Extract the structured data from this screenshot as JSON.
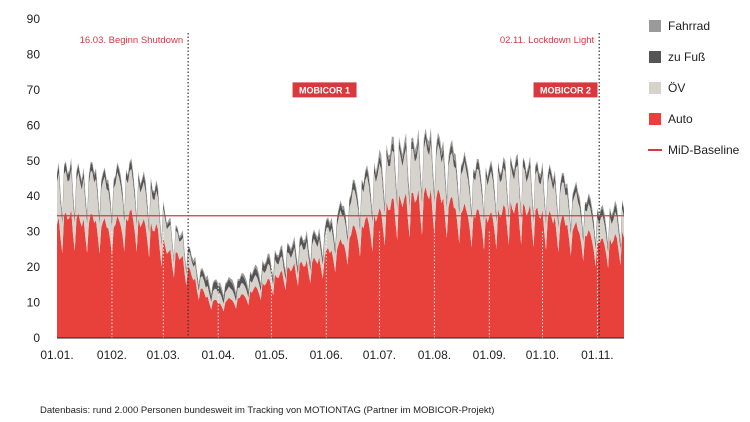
{
  "chart_data": {
    "type": "area",
    "stacked": true,
    "title": "",
    "xlabel": "",
    "ylabel": "",
    "ylim": [
      0,
      90
    ],
    "yticks": [
      0,
      10,
      20,
      30,
      40,
      50,
      60,
      70,
      80,
      90
    ],
    "x_tick_labels": [
      "01.01.",
      "0102.",
      "01.03.",
      "01.04.",
      "01.05.",
      "01.06.",
      "01.07.",
      "01.08.",
      "01.09.",
      "01.10.",
      "01.11."
    ],
    "x_tick_days": [
      0,
      31,
      60,
      91,
      121,
      152,
      182,
      213,
      244,
      274,
      305
    ],
    "x_range_days": [
      0,
      320
    ],
    "grid": false,
    "legend_position": "right",
    "series_order": [
      "Auto",
      "ÖV",
      "zu Fuß",
      "Fahrrad"
    ],
    "series": [
      {
        "name": "Auto",
        "color": "#e8413c",
        "points": [
          [
            0,
            32
          ],
          [
            7,
            35
          ],
          [
            14,
            33
          ],
          [
            21,
            34
          ],
          [
            28,
            32
          ],
          [
            35,
            33
          ],
          [
            42,
            35
          ],
          [
            49,
            32
          ],
          [
            56,
            31
          ],
          [
            63,
            24
          ],
          [
            70,
            23
          ],
          [
            77,
            17
          ],
          [
            84,
            12
          ],
          [
            91,
            10
          ],
          [
            98,
            11
          ],
          [
            105,
            12
          ],
          [
            112,
            14
          ],
          [
            119,
            16
          ],
          [
            126,
            18
          ],
          [
            133,
            20
          ],
          [
            140,
            21
          ],
          [
            147,
            22
          ],
          [
            154,
            25
          ],
          [
            161,
            27
          ],
          [
            168,
            31
          ],
          [
            175,
            33
          ],
          [
            182,
            35
          ],
          [
            189,
            38
          ],
          [
            196,
            39
          ],
          [
            203,
            40
          ],
          [
            210,
            41
          ],
          [
            217,
            40
          ],
          [
            224,
            38
          ],
          [
            231,
            36
          ],
          [
            238,
            35
          ],
          [
            245,
            34
          ],
          [
            252,
            36
          ],
          [
            259,
            37
          ],
          [
            266,
            36
          ],
          [
            273,
            35
          ],
          [
            280,
            34
          ],
          [
            287,
            33
          ],
          [
            294,
            31
          ],
          [
            301,
            29
          ],
          [
            308,
            27
          ],
          [
            315,
            28
          ],
          [
            320,
            29
          ]
        ]
      },
      {
        "name": "ÖV",
        "color": "#d6d2cc",
        "points": [
          [
            0,
            12
          ],
          [
            7,
            11
          ],
          [
            14,
            11
          ],
          [
            21,
            12
          ],
          [
            28,
            11
          ],
          [
            35,
            12
          ],
          [
            42,
            11
          ],
          [
            49,
            10
          ],
          [
            56,
            9
          ],
          [
            63,
            7
          ],
          [
            70,
            5
          ],
          [
            77,
            4
          ],
          [
            84,
            3
          ],
          [
            91,
            3
          ],
          [
            98,
            3
          ],
          [
            105,
            3
          ],
          [
            112,
            3
          ],
          [
            119,
            4
          ],
          [
            126,
            4
          ],
          [
            133,
            4
          ],
          [
            140,
            5
          ],
          [
            147,
            5
          ],
          [
            154,
            6
          ],
          [
            161,
            8
          ],
          [
            168,
            10
          ],
          [
            175,
            11
          ],
          [
            182,
            12
          ],
          [
            189,
            13
          ],
          [
            196,
            12
          ],
          [
            203,
            12
          ],
          [
            210,
            13
          ],
          [
            217,
            12
          ],
          [
            224,
            12
          ],
          [
            231,
            11
          ],
          [
            238,
            11
          ],
          [
            245,
            11
          ],
          [
            252,
            10
          ],
          [
            259,
            10
          ],
          [
            266,
            10
          ],
          [
            273,
            10
          ],
          [
            280,
            10
          ],
          [
            287,
            9
          ],
          [
            294,
            8
          ],
          [
            301,
            7
          ],
          [
            308,
            6
          ],
          [
            315,
            6
          ],
          [
            320,
            6
          ]
        ]
      },
      {
        "name": "zu Fuß",
        "color": "#555555",
        "points": [
          [
            0,
            2
          ],
          [
            7,
            2
          ],
          [
            14,
            2
          ],
          [
            21,
            2
          ],
          [
            28,
            2
          ],
          [
            35,
            2
          ],
          [
            42,
            2
          ],
          [
            49,
            2
          ],
          [
            56,
            2
          ],
          [
            63,
            1
          ],
          [
            70,
            1
          ],
          [
            77,
            1
          ],
          [
            84,
            2
          ],
          [
            91,
            2
          ],
          [
            98,
            2
          ],
          [
            105,
            2
          ],
          [
            112,
            2
          ],
          [
            119,
            2
          ],
          [
            126,
            2
          ],
          [
            133,
            2
          ],
          [
            140,
            2
          ],
          [
            147,
            2
          ],
          [
            154,
            2
          ],
          [
            161,
            2
          ],
          [
            168,
            2
          ],
          [
            175,
            2
          ],
          [
            182,
            2
          ],
          [
            189,
            2
          ],
          [
            196,
            2
          ],
          [
            203,
            2
          ],
          [
            210,
            2
          ],
          [
            217,
            2
          ],
          [
            224,
            2
          ],
          [
            231,
            2
          ],
          [
            238,
            2
          ],
          [
            245,
            2
          ],
          [
            252,
            2
          ],
          [
            259,
            2
          ],
          [
            266,
            2
          ],
          [
            273,
            2
          ],
          [
            280,
            2
          ],
          [
            287,
            2
          ],
          [
            294,
            2
          ],
          [
            301,
            2
          ],
          [
            308,
            2
          ],
          [
            315,
            2
          ],
          [
            320,
            2
          ]
        ]
      },
      {
        "name": "Fahrrad",
        "color": "#9a9a9a",
        "points": [
          [
            0,
            1
          ],
          [
            7,
            1
          ],
          [
            14,
            1
          ],
          [
            21,
            1
          ],
          [
            28,
            1
          ],
          [
            35,
            1
          ],
          [
            42,
            1
          ],
          [
            49,
            1
          ],
          [
            56,
            1
          ],
          [
            63,
            1
          ],
          [
            70,
            1
          ],
          [
            77,
            1
          ],
          [
            84,
            1
          ],
          [
            91,
            1
          ],
          [
            98,
            1
          ],
          [
            105,
            1
          ],
          [
            112,
            1
          ],
          [
            119,
            1
          ],
          [
            126,
            1
          ],
          [
            133,
            1
          ],
          [
            140,
            1
          ],
          [
            147,
            1
          ],
          [
            154,
            1
          ],
          [
            161,
            1
          ],
          [
            168,
            1
          ],
          [
            175,
            1
          ],
          [
            182,
            2
          ],
          [
            189,
            2
          ],
          [
            196,
            2
          ],
          [
            203,
            2
          ],
          [
            210,
            2
          ],
          [
            217,
            2
          ],
          [
            224,
            2
          ],
          [
            231,
            1
          ],
          [
            238,
            1
          ],
          [
            245,
            1
          ],
          [
            252,
            1
          ],
          [
            259,
            1
          ],
          [
            266,
            1
          ],
          [
            273,
            1
          ],
          [
            280,
            1
          ],
          [
            287,
            1
          ],
          [
            294,
            1
          ],
          [
            301,
            1
          ],
          [
            308,
            1
          ],
          [
            315,
            1
          ],
          [
            320,
            1
          ]
        ]
      }
    ],
    "baseline": {
      "name": "MiD-Baseline",
      "value": 34.5,
      "color": "#d9383f"
    },
    "vertical_markers": [
      {
        "day": 74,
        "label": "16.03. Beginn Shutdown"
      },
      {
        "day": 306,
        "label": "02.11. Lockdown Light"
      }
    ],
    "dotted_day_lines": [
      31,
      60,
      91,
      121,
      152,
      182,
      213,
      244,
      274,
      305
    ],
    "badges": [
      {
        "label": "MOBICOR 1",
        "day": 151,
        "value": 70
      },
      {
        "label": "MOBICOR 2",
        "day": 287,
        "value": 70
      }
    ],
    "legend": [
      {
        "name": "Fahrrad",
        "kind": "square",
        "color": "#9a9a9a"
      },
      {
        "name": "zu Fuß",
        "kind": "square",
        "color": "#555555"
      },
      {
        "name": "ÖV",
        "kind": "square",
        "color": "#d6d2cc"
      },
      {
        "name": "Auto",
        "kind": "square",
        "color": "#e8413c"
      },
      {
        "name": "MiD-Baseline",
        "kind": "line",
        "color": "#d9383f"
      }
    ],
    "source_note": "Datenbasis: rund 2.000 Personen bundesweit im Tracking von MOTIONTAG (Partner im MOBICOR-Projekt)"
  }
}
